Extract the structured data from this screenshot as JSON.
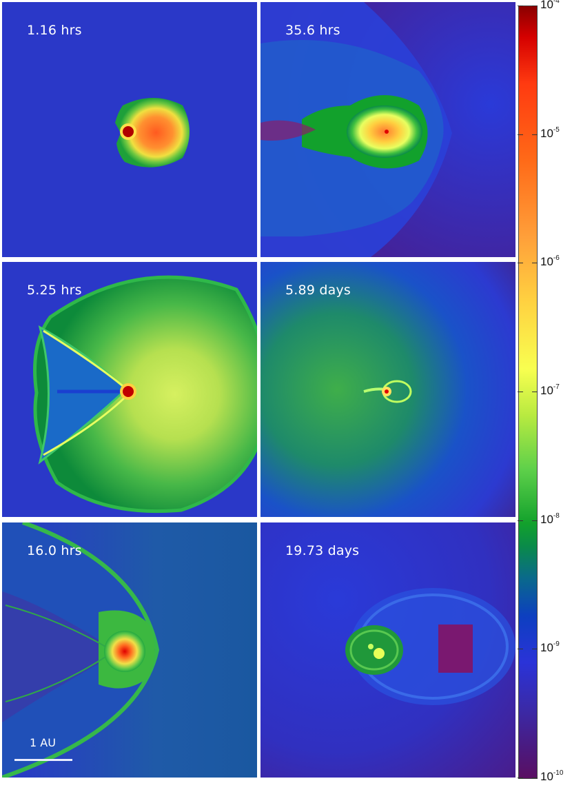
{
  "panels": [
    {
      "label": "1.16 hrs"
    },
    {
      "label": "35.6 hrs"
    },
    {
      "label": "5.25 hrs"
    },
    {
      "label": "5.89 days"
    },
    {
      "label": "16.0 hrs"
    },
    {
      "label": "19.73 days"
    }
  ],
  "scale_bar": {
    "label": "1 AU"
  },
  "colorbar": {
    "ticks": [
      {
        "base": "10",
        "exp": "-4"
      },
      {
        "base": "10",
        "exp": "-5"
      },
      {
        "base": "10",
        "exp": "-6"
      },
      {
        "base": "10",
        "exp": "-7"
      },
      {
        "base": "10",
        "exp": "-8"
      },
      {
        "base": "10",
        "exp": "-9"
      },
      {
        "base": "10",
        "exp": "-10"
      }
    ],
    "colors": [
      "#8a0000",
      "#ff3a10",
      "#ffa03a",
      "#f8ff50",
      "#5ed04a",
      "#0d3fc0",
      "#5a0f62"
    ]
  }
}
